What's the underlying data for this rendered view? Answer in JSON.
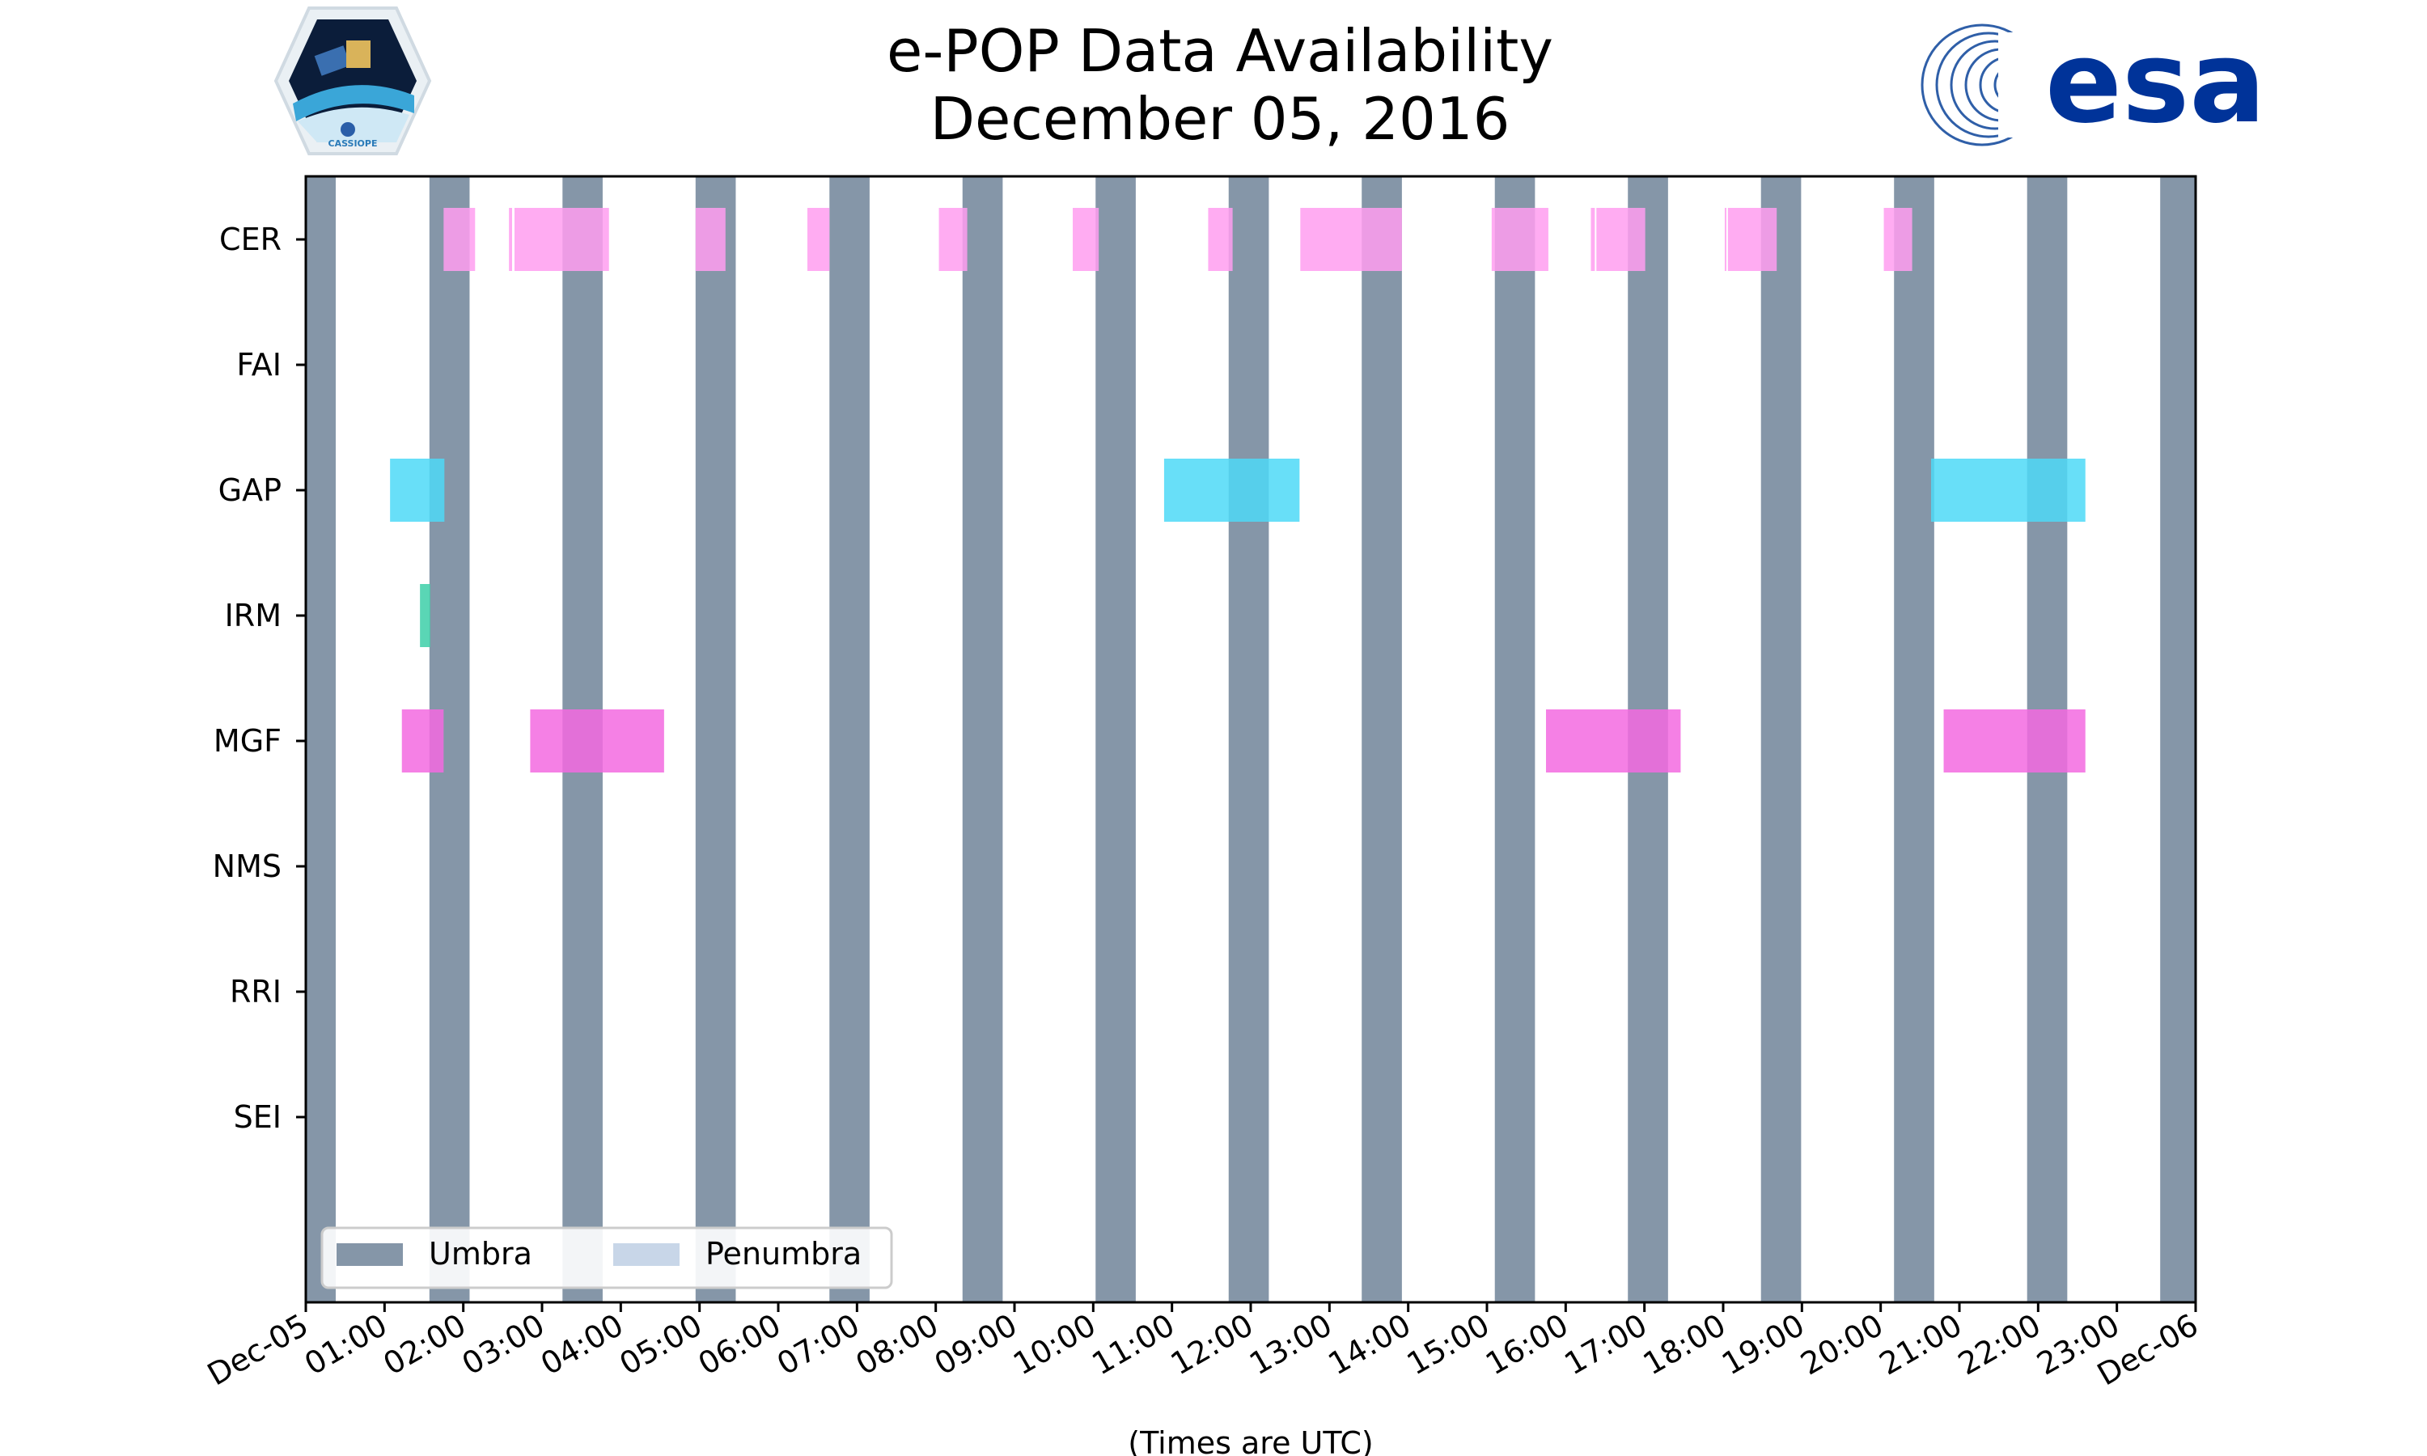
{
  "chart_data": {
    "type": "timeline",
    "title_line1": "e-POP Data Availability",
    "title_line2": "December 05, 2016",
    "xlabel": "(Times are UTC)",
    "x_unit": "hours UTC",
    "xlim": [
      0,
      24
    ],
    "x_ticks": [
      {
        "t": 0,
        "label": "Dec-05"
      },
      {
        "t": 1,
        "label": "01:00"
      },
      {
        "t": 2,
        "label": "02:00"
      },
      {
        "t": 3,
        "label": "03:00"
      },
      {
        "t": 4,
        "label": "04:00"
      },
      {
        "t": 5,
        "label": "05:00"
      },
      {
        "t": 6,
        "label": "06:00"
      },
      {
        "t": 7,
        "label": "07:00"
      },
      {
        "t": 8,
        "label": "08:00"
      },
      {
        "t": 9,
        "label": "09:00"
      },
      {
        "t": 10,
        "label": "10:00"
      },
      {
        "t": 11,
        "label": "11:00"
      },
      {
        "t": 12,
        "label": "12:00"
      },
      {
        "t": 13,
        "label": "13:00"
      },
      {
        "t": 14,
        "label": "14:00"
      },
      {
        "t": 15,
        "label": "15:00"
      },
      {
        "t": 16,
        "label": "16:00"
      },
      {
        "t": 17,
        "label": "17:00"
      },
      {
        "t": 18,
        "label": "18:00"
      },
      {
        "t": 19,
        "label": "19:00"
      },
      {
        "t": 20,
        "label": "20:00"
      },
      {
        "t": 21,
        "label": "21:00"
      },
      {
        "t": 22,
        "label": "22:00"
      },
      {
        "t": 23,
        "label": "23:00"
      },
      {
        "t": 24,
        "label": "Dec-06"
      }
    ],
    "instruments": [
      "CER",
      "FAI",
      "GAP",
      "IRM",
      "MGF",
      "NMS",
      "RRI",
      "SEI"
    ],
    "colors": {
      "umbra": "#8596a8",
      "penumbra": "#c8d6e8",
      "CER": "#ff9ef0",
      "GAP": "#4dd9f7",
      "IRM": "#3dcfa8",
      "MGF": "#f36ae0"
    },
    "umbra": [
      [
        0.0,
        0.38
      ],
      [
        1.57,
        2.08
      ],
      [
        3.26,
        3.77
      ],
      [
        4.95,
        5.46
      ],
      [
        6.65,
        7.16
      ],
      [
        8.34,
        8.85
      ],
      [
        10.03,
        10.54
      ],
      [
        11.72,
        12.23
      ],
      [
        13.41,
        13.92
      ],
      [
        15.1,
        15.61
      ],
      [
        16.79,
        17.3
      ],
      [
        18.48,
        18.99
      ],
      [
        20.17,
        20.68
      ],
      [
        21.86,
        22.37
      ],
      [
        23.55,
        24.0
      ]
    ],
    "series": [
      {
        "name": "CER",
        "intervals": [
          [
            1.75,
            2.15
          ],
          [
            2.58,
            2.62
          ],
          [
            2.65,
            3.85
          ],
          [
            4.95,
            5.33
          ],
          [
            6.37,
            6.65
          ],
          [
            8.04,
            8.4
          ],
          [
            9.74,
            10.07
          ],
          [
            11.46,
            11.77
          ],
          [
            12.63,
            13.92
          ],
          [
            15.06,
            15.78
          ],
          [
            16.32,
            16.37
          ],
          [
            16.39,
            17.01
          ],
          [
            18.02,
            18.04
          ],
          [
            18.06,
            18.68
          ],
          [
            20.04,
            20.4
          ]
        ]
      },
      {
        "name": "FAI",
        "intervals": []
      },
      {
        "name": "GAP",
        "intervals": [
          [
            1.07,
            1.76
          ],
          [
            10.9,
            12.62
          ],
          [
            20.64,
            22.6
          ]
        ]
      },
      {
        "name": "IRM",
        "intervals": [
          [
            1.45,
            1.58
          ]
        ]
      },
      {
        "name": "MGF",
        "intervals": [
          [
            1.22,
            1.75
          ],
          [
            2.85,
            4.55
          ],
          [
            15.75,
            17.46
          ],
          [
            20.8,
            22.6
          ]
        ]
      },
      {
        "name": "NMS",
        "intervals": []
      },
      {
        "name": "RRI",
        "intervals": []
      },
      {
        "name": "SEI",
        "intervals": []
      }
    ],
    "legend": {
      "position": "lower-left",
      "items": [
        {
          "label": "Umbra",
          "color": "#8596a8"
        },
        {
          "label": "Penumbra",
          "color": "#c8d6e8"
        }
      ]
    }
  },
  "logos": {
    "left_caption": "CASSIOPE",
    "right_wordmark": "esa",
    "esa_color": "#003399"
  }
}
